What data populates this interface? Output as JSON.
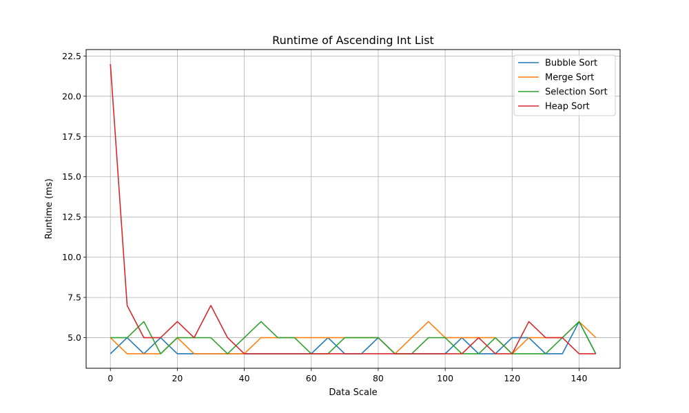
{
  "chart_data": {
    "type": "line",
    "title": "Runtime of Ascending Int List",
    "xlabel": "Data Scale",
    "ylabel": "Runtime (ms)",
    "xlim": [
      -7.25,
      152.25
    ],
    "ylim": [
      3.1,
      22.9
    ],
    "xticks": [
      0,
      20,
      40,
      60,
      80,
      100,
      120,
      140
    ],
    "yticks": [
      5.0,
      7.5,
      10.0,
      12.5,
      15.0,
      17.5,
      20.0,
      22.5
    ],
    "grid": true,
    "legend_position": "top-right",
    "x": [
      0,
      5,
      10,
      15,
      20,
      25,
      30,
      35,
      40,
      45,
      50,
      55,
      60,
      65,
      70,
      75,
      80,
      85,
      90,
      95,
      100,
      105,
      110,
      115,
      120,
      125,
      130,
      135,
      140,
      145
    ],
    "series": [
      {
        "name": "Bubble Sort",
        "color": "#1f77b4",
        "values": [
          4,
          5,
          4,
          5,
          4,
          4,
          4,
          4,
          4,
          4,
          4,
          4,
          4,
          5,
          4,
          4,
          5,
          4,
          4,
          4,
          4,
          5,
          4,
          4,
          5,
          5,
          4,
          4,
          6,
          4
        ]
      },
      {
        "name": "Merge Sort",
        "color": "#ff7f0e",
        "values": [
          5,
          4,
          4,
          4,
          5,
          4,
          4,
          4,
          4,
          5,
          5,
          5,
          5,
          5,
          5,
          5,
          5,
          4,
          5,
          6,
          5,
          5,
          5,
          5,
          4,
          5,
          5,
          5,
          6,
          5
        ]
      },
      {
        "name": "Selection Sort",
        "color": "#2ca02c",
        "values": [
          5,
          5,
          6,
          4,
          5,
          5,
          5,
          4,
          5,
          6,
          5,
          5,
          4,
          4,
          5,
          5,
          5,
          4,
          4,
          5,
          5,
          4,
          4,
          5,
          4,
          4,
          4,
          5,
          6,
          4
        ]
      },
      {
        "name": "Heap Sort",
        "color": "#d62728",
        "values": [
          22,
          7,
          5,
          5,
          6,
          5,
          7,
          5,
          4,
          4,
          4,
          4,
          4,
          4,
          4,
          4,
          4,
          4,
          4,
          4,
          4,
          4,
          5,
          4,
          4,
          6,
          5,
          5,
          4,
          4
        ]
      }
    ]
  }
}
